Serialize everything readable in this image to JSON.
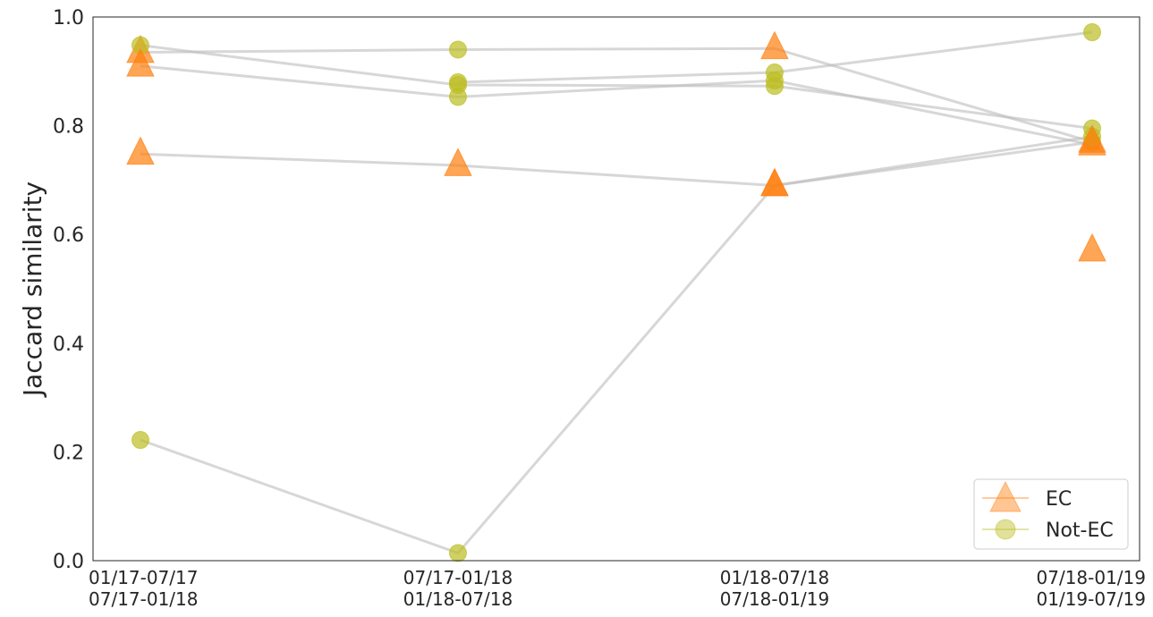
{
  "chart_data": {
    "type": "line",
    "ylabel": "Jaccard similarity",
    "xlabel": "",
    "ylim": [
      0.0,
      1.0
    ],
    "yticks": [
      "0.0",
      "0.2",
      "0.4",
      "0.6",
      "0.8",
      "1.0"
    ],
    "grid": false,
    "legend_position": "bottom-right",
    "categories": [
      [
        "01/17-07/17",
        "07/17-01/18"
      ],
      [
        "07/17-01/18",
        "01/18-07/18"
      ],
      [
        "01/18-07/18",
        "07/18-01/19"
      ],
      [
        "07/18-01/19",
        "01/19-07/19"
      ]
    ],
    "legend": [
      {
        "label": "EC",
        "marker": "triangle",
        "color": "#ff7f0e"
      },
      {
        "label": "Not-EC",
        "marker": "circle",
        "color": "#bcbd22"
      }
    ],
    "colors": {
      "ec": "#ff7f0e",
      "not_ec": "#bcbd22",
      "line": "#bdbdbd"
    },
    "series": [
      {
        "values": [
          0.935,
          0.94,
          0.942,
          0.77
        ],
        "markers": [
          "triangle",
          "circle",
          "triangle",
          "circle"
        ]
      },
      {
        "values": [
          0.948,
          0.875,
          0.873,
          0.795
        ],
        "markers": [
          "circle",
          "circle",
          "circle",
          "circle"
        ]
      },
      {
        "values": [
          0.91,
          0.853,
          0.883,
          0.765
        ],
        "markers": [
          "triangle",
          "circle",
          "circle",
          "triangle"
        ]
      },
      {
        "values": [
          0.748,
          0.727,
          0.69,
          0.78
        ],
        "markers": [
          "triangle",
          "triangle",
          "triangle",
          "circle"
        ]
      },
      {
        "values": [
          0.222,
          0.014,
          0.69,
          0.77
        ],
        "markers": [
          "circle",
          "circle",
          "triangle",
          "triangle"
        ]
      },
      {
        "values": [
          null,
          0.88,
          0.898,
          0.972
        ],
        "markers": [
          null,
          "circle",
          "circle",
          "circle"
        ]
      }
    ],
    "extra_points": [
      {
        "x_index": 3,
        "value": 0.57,
        "marker": "triangle"
      }
    ]
  }
}
